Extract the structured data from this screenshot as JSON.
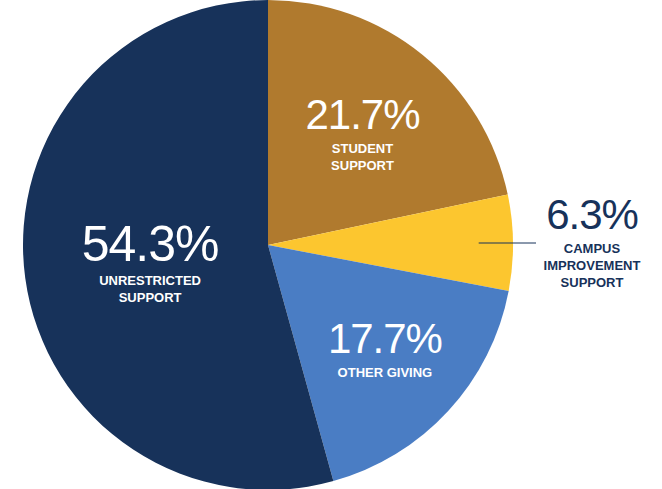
{
  "chart_data": {
    "type": "pie",
    "categories": [
      "STUDENT\nSUPPORT",
      "CAMPUS\nIMPROVEMENT\nSUPPORT",
      "OTHER GIVING",
      "UNRESTRICTED\nSUPPORT"
    ],
    "values": [
      21.7,
      6.3,
      17.7,
      54.3
    ],
    "value_labels": [
      "21.7%",
      "6.3%",
      "17.7%",
      "54.3%"
    ],
    "colors": [
      "#b07a2e",
      "#fcc62f",
      "#4a7dc4",
      "#17325a"
    ],
    "data_labels": true
  }
}
